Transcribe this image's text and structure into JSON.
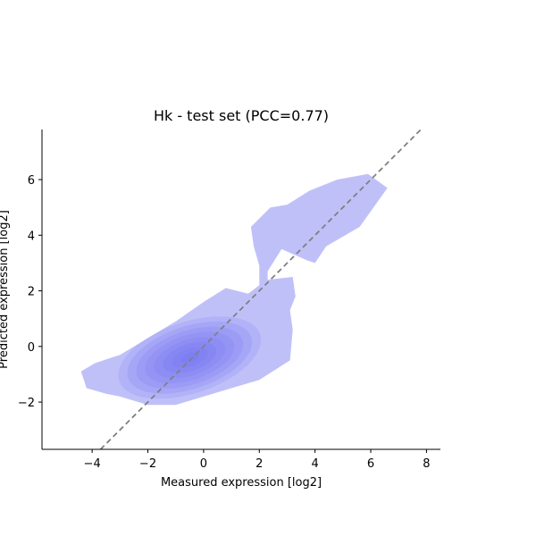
{
  "chart_data": {
    "type": "kde-density-contour",
    "title": "Hk - test set (PCC=0.77)",
    "xlabel": "Measured expression [log2]",
    "ylabel": "Predicted expression [log2]",
    "xlim": [
      -5.8,
      8.5
    ],
    "ylim": [
      -3.7,
      7.8
    ],
    "xticks": [
      -4,
      -2,
      0,
      2,
      4,
      6,
      8
    ],
    "yticks": [
      -2,
      0,
      2,
      4,
      6
    ],
    "xtick_labels": [
      "−4",
      "−2",
      "0",
      "2",
      "4",
      "6",
      "8"
    ],
    "ytick_labels": [
      "−2",
      "0",
      "2",
      "4",
      "6"
    ],
    "grid": false,
    "fill_color": "#6a6af0",
    "density_levels": 9,
    "mode": {
      "x": -0.5,
      "y": -0.4
    },
    "outer_contour": [
      [
        -3.5,
        -1.7
      ],
      [
        -4.2,
        -1.5
      ],
      [
        -4.4,
        -0.9
      ],
      [
        -3.9,
        -0.6
      ],
      [
        -3.0,
        -0.3
      ],
      [
        -2.0,
        0.3
      ],
      [
        -1.0,
        0.9
      ],
      [
        0.0,
        1.6
      ],
      [
        0.8,
        2.1
      ],
      [
        1.6,
        1.9
      ],
      [
        2.0,
        2.2
      ],
      [
        2.0,
        2.9
      ],
      [
        1.8,
        3.6
      ],
      [
        1.7,
        4.3
      ],
      [
        2.4,
        5.0
      ],
      [
        3.0,
        5.1
      ],
      [
        3.8,
        5.6
      ],
      [
        4.8,
        6.0
      ],
      [
        5.9,
        6.2
      ],
      [
        6.6,
        5.7
      ],
      [
        6.1,
        5.0
      ],
      [
        5.6,
        4.3
      ],
      [
        4.4,
        3.6
      ],
      [
        4.0,
        3.0
      ],
      [
        3.7,
        3.1
      ],
      [
        2.8,
        3.5
      ],
      [
        2.3,
        2.7
      ],
      [
        2.3,
        2.4
      ],
      [
        3.2,
        2.5
      ],
      [
        3.3,
        1.8
      ],
      [
        3.1,
        1.3
      ],
      [
        3.2,
        0.6
      ],
      [
        3.1,
        -0.5
      ],
      [
        2.0,
        -1.2
      ],
      [
        1.0,
        -1.5
      ],
      [
        0.0,
        -1.8
      ],
      [
        -1.0,
        -2.1
      ],
      [
        -2.0,
        -2.1
      ],
      [
        -3.0,
        -1.8
      ]
    ],
    "reference_line": {
      "slope": 1,
      "intercept": 0,
      "style": "dashed",
      "color": "#808080"
    }
  }
}
